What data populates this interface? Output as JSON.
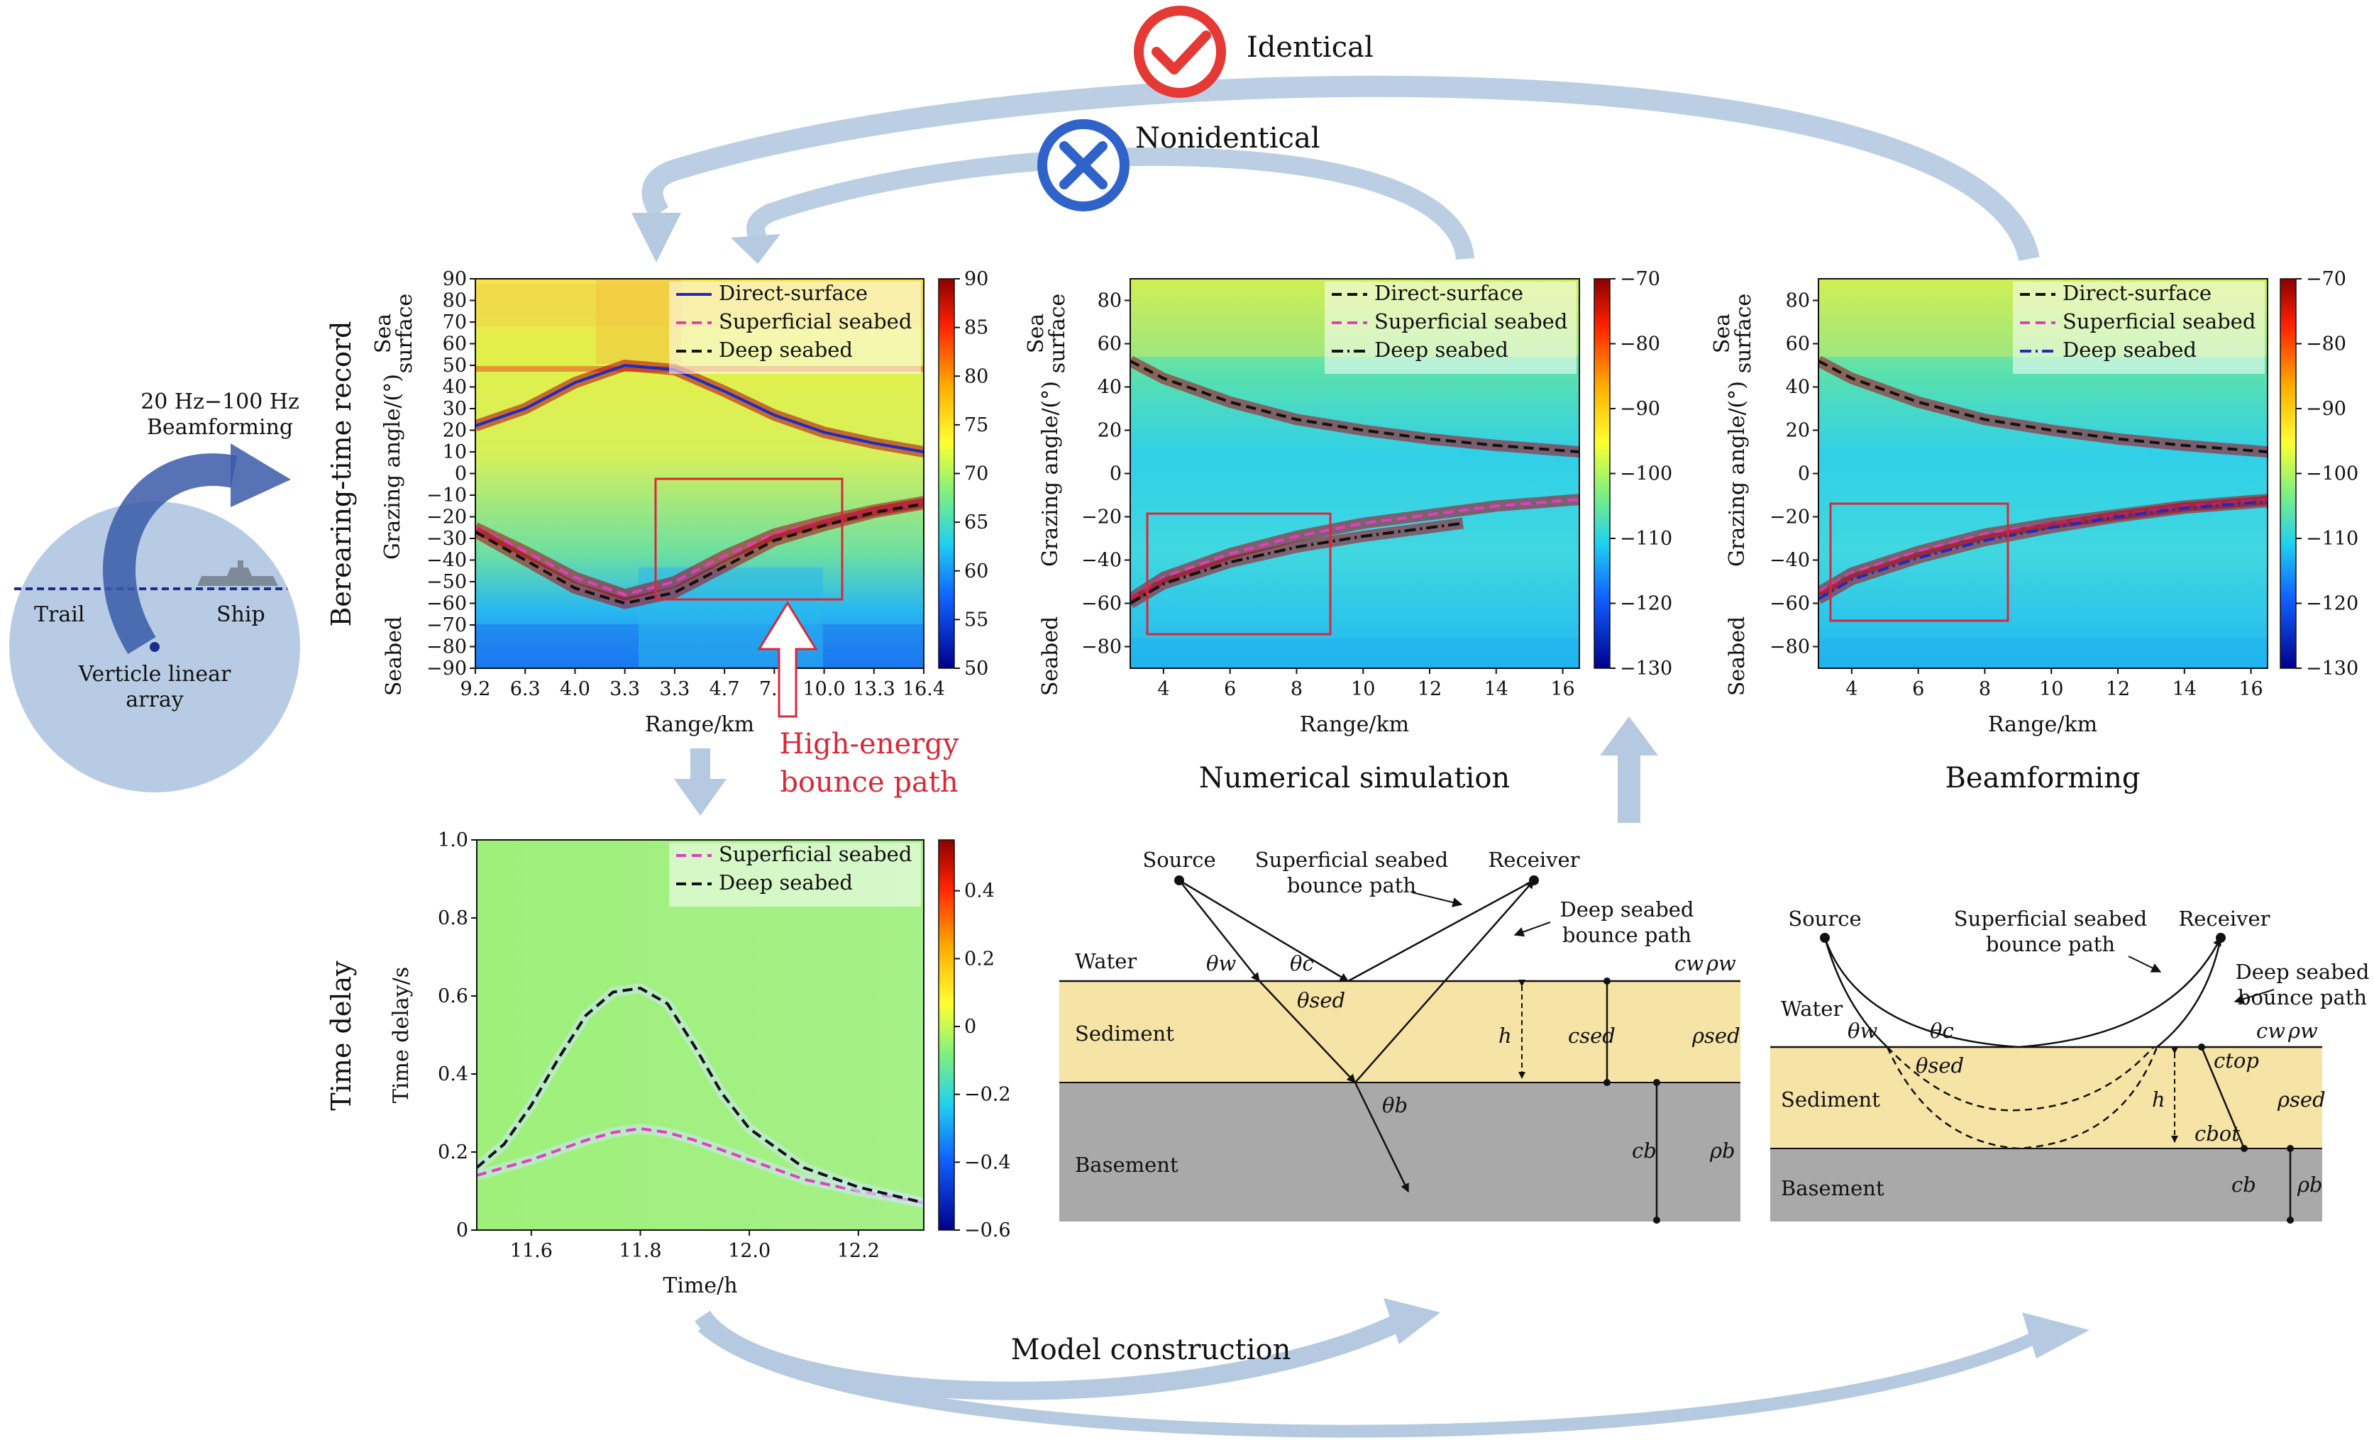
{
  "header": {
    "identical_label": "Identical",
    "nonidentical_label": "Nonidentical",
    "colors": {
      "identical": "#e53935",
      "nonidentical": "#2f63c9",
      "arrow": "#b9cde3"
    }
  },
  "array_scene": {
    "beamforming_label_line1": "20 Hz−100 Hz",
    "beamforming_label_line2": "Beamforming",
    "trail_label": "Trail",
    "ship_label": "Ship",
    "array_label_line1": "Verticle linear",
    "array_label_line2": "array"
  },
  "side_labels": {
    "bearing_time_record": "Berearing-time record",
    "time_delay": "Time delay"
  },
  "panel_captions": {
    "numerical_simulation": "Numerical simulation",
    "beamforming": "Beamforming",
    "high_energy_line1": "High-energy",
    "high_energy_line2": "bounce path",
    "model_construction": "Model construction"
  },
  "axis_side_labels": {
    "sea_surface_line1": "Sea",
    "sea_surface_line2": "surface",
    "seabed": "Seabed"
  },
  "chart_data": [
    {
      "type": "heatmap",
      "xlabel": "Range/km",
      "ylabel": "Grazing angle/(°)",
      "x_tick_labels": [
        "9.2",
        "6.3",
        "4.0",
        "3.3",
        "3.3",
        "4.7",
        "7.3",
        "10.0",
        "13.3",
        "16.4"
      ],
      "y_tick_labels": [
        "90",
        "80",
        "70",
        "60",
        "50",
        "40",
        "30",
        "20",
        "10",
        "0",
        "−10",
        "−20",
        "−30",
        "−40",
        "−50",
        "−60",
        "−70",
        "−80",
        "−90"
      ],
      "ylim": [
        -90,
        90
      ],
      "colorbar_ticks": [
        "90",
        "85",
        "80",
        "75",
        "70",
        "65",
        "60",
        "55",
        "50"
      ],
      "colorbar_range": [
        50,
        90
      ],
      "legend": [
        "Direct-surface",
        "Superficial seabed",
        "Deep seabed"
      ],
      "legend_location": "upper right",
      "series": [
        {
          "name": "Direct-surface",
          "style": "solid",
          "color": "#1f2bbf",
          "x": [
            0,
            1,
            2,
            3,
            4,
            5,
            6,
            7,
            8,
            9
          ],
          "y": [
            22,
            30,
            42,
            50,
            48,
            38,
            27,
            19,
            14,
            10
          ]
        },
        {
          "name": "Superficial seabed",
          "style": "dashed",
          "color": "#e040c0",
          "x": [
            0,
            1,
            2,
            3,
            4,
            5,
            6,
            7,
            8,
            9
          ],
          "y": [
            -25,
            -36,
            -48,
            -56,
            -50,
            -38,
            -28,
            -22,
            -17,
            -13
          ]
        },
        {
          "name": "Deep seabed",
          "style": "dashed",
          "color": "#111111",
          "x": [
            0,
            1,
            2,
            3,
            4,
            5,
            6,
            7,
            8,
            9
          ],
          "y": [
            -27,
            -40,
            -53,
            -60,
            -55,
            -43,
            -31,
            -24,
            -18,
            -14
          ]
        }
      ],
      "annotation": "High-energy bounce path"
    },
    {
      "type": "heatmap",
      "xlabel": "Range/km",
      "ylabel": "Grazing angle/(°)",
      "x_tick_labels": [
        "4",
        "6",
        "8",
        "10",
        "12",
        "14",
        "16"
      ],
      "xlim": [
        3,
        16.5
      ],
      "y_tick_labels": [
        "80",
        "60",
        "40",
        "20",
        "0",
        "−20",
        "−40",
        "−60",
        "−80"
      ],
      "ylim": [
        -90,
        90
      ],
      "colorbar_ticks": [
        "−70",
        "−80",
        "−90",
        "−100",
        "−110",
        "−120",
        "−130"
      ],
      "colorbar_range": [
        -130,
        -70
      ],
      "legend": [
        "Direct-surface",
        "Superficial seabed",
        "Deep seabed"
      ],
      "legend_location": "upper right",
      "caption": "Numerical simulation",
      "series": [
        {
          "name": "Direct-surface",
          "style": "dashed",
          "color": "#111111",
          "x": [
            3,
            4,
            6,
            8,
            10,
            12,
            14,
            16.5
          ],
          "y": [
            52,
            44,
            33,
            25,
            20,
            16,
            13,
            10
          ]
        },
        {
          "name": "Superficial seabed",
          "style": "dashed",
          "color": "#e040c0",
          "x": [
            3,
            4,
            6,
            8,
            10,
            12,
            14,
            16.5
          ],
          "y": [
            -58,
            -48,
            -37,
            -29,
            -23,
            -19,
            -15,
            -12
          ]
        },
        {
          "name": "Deep seabed",
          "style": "dashdot",
          "color": "#111111",
          "x": [
            3,
            4,
            6,
            8,
            10,
            12,
            13
          ],
          "y": [
            -60,
            -51,
            -41,
            -34,
            -29,
            -25,
            -23
          ]
        }
      ]
    },
    {
      "type": "heatmap",
      "xlabel": "Range/km",
      "ylabel": "Grazing angle/(°)",
      "x_tick_labels": [
        "4",
        "6",
        "8",
        "10",
        "12",
        "14",
        "16"
      ],
      "xlim": [
        3,
        16.5
      ],
      "y_tick_labels": [
        "80",
        "60",
        "40",
        "20",
        "0",
        "−20",
        "−40",
        "−60",
        "−80"
      ],
      "ylim": [
        -90,
        90
      ],
      "colorbar_ticks": [
        "−70",
        "−80",
        "−90",
        "−100",
        "−110",
        "−120",
        "−130"
      ],
      "colorbar_range": [
        -130,
        -70
      ],
      "legend": [
        "Direct-surface",
        "Superficial seabed",
        "Deep seabed"
      ],
      "legend_location": "upper right",
      "caption": "Beamforming",
      "series": [
        {
          "name": "Direct-surface",
          "style": "dashed",
          "color": "#111111",
          "x": [
            3,
            4,
            6,
            8,
            10,
            12,
            14,
            16.5
          ],
          "y": [
            52,
            44,
            33,
            25,
            20,
            16,
            13,
            10
          ]
        },
        {
          "name": "Superficial seabed",
          "style": "dashed",
          "color": "#e040c0",
          "x": [
            3,
            4,
            6,
            8,
            10,
            12,
            14,
            16.5
          ],
          "y": [
            -55,
            -46,
            -36,
            -28,
            -23,
            -19,
            -15,
            -12
          ]
        },
        {
          "name": "Deep seabed",
          "style": "dashdot",
          "color": "#1f2bbf",
          "x": [
            3,
            4,
            6,
            8,
            10,
            12,
            14,
            16.5
          ],
          "y": [
            -58,
            -49,
            -39,
            -31,
            -25,
            -20,
            -16,
            -13
          ]
        }
      ]
    },
    {
      "type": "heatmap",
      "xlabel": "Time/h",
      "ylabel": "Time delay/s",
      "x_tick_labels": [
        "11.6",
        "11.8",
        "12.0",
        "12.2"
      ],
      "xlim": [
        11.5,
        12.32
      ],
      "y_tick_labels": [
        "1.0",
        "0.8",
        "0.6",
        "0.4",
        "0.2",
        "0"
      ],
      "ylim": [
        0,
        1.0
      ],
      "colorbar_ticks": [
        "0.4",
        "0.2",
        "0",
        "−0.2",
        "−0.4",
        "−0.6"
      ],
      "colorbar_range": [
        -0.6,
        0.55
      ],
      "legend": [
        "Superficial seabed",
        "Deep seabed"
      ],
      "legend_location": "upper right",
      "series": [
        {
          "name": "Superficial seabed",
          "style": "dashed",
          "color": "#e040c0",
          "x": [
            11.5,
            11.6,
            11.7,
            11.75,
            11.8,
            11.85,
            11.9,
            12.0,
            12.1,
            12.2,
            12.32
          ],
          "y": [
            0.14,
            0.18,
            0.23,
            0.25,
            0.26,
            0.25,
            0.23,
            0.18,
            0.13,
            0.1,
            0.07
          ]
        },
        {
          "name": "Deep seabed",
          "style": "dashed",
          "color": "#111111",
          "x": [
            11.5,
            11.55,
            11.6,
            11.65,
            11.7,
            11.75,
            11.8,
            11.85,
            11.9,
            11.95,
            12.0,
            12.1,
            12.2,
            12.32
          ],
          "y": [
            0.16,
            0.22,
            0.32,
            0.44,
            0.55,
            0.61,
            0.62,
            0.58,
            0.47,
            0.35,
            0.26,
            0.16,
            0.11,
            0.07
          ]
        }
      ]
    }
  ],
  "model_left": {
    "source": "Source",
    "receiver": "Receiver",
    "superficial_path_line1": "Superficial seabed",
    "superficial_path_line2": "bounce path",
    "deep_path_line1": "Deep seabed",
    "deep_path_line2": "bounce path",
    "water": "Water",
    "sediment": "Sediment",
    "basement": "Basement",
    "theta_w": "θw",
    "theta_c": "θc",
    "theta_sed": "θsed",
    "theta_b": "θb",
    "h": "h",
    "c_sed": "csed",
    "c_b": "cb",
    "c_w": "cw",
    "rho_w": "ρw",
    "rho_sed": "ρsed",
    "rho_b": "ρb",
    "colors": {
      "sediment": "#f6e3a6",
      "basement": "#a9a9a9"
    }
  },
  "model_right": {
    "source": "Source",
    "receiver": "Receiver",
    "superficial_path_line1": "Superficial seabed",
    "superficial_path_line2": "bounce path",
    "deep_path_line1": "Deep seabed",
    "deep_path_line2": "bounce path",
    "water": "Water",
    "sediment": "Sediment",
    "basement": "Basement",
    "theta_w": "θw",
    "theta_c": "θc",
    "theta_sed": "θsed",
    "h": "h",
    "c_top": "ctop",
    "c_bot": "cbot",
    "c_b": "cb",
    "c_w": "cw",
    "rho_w": "ρw",
    "rho_sed": "ρsed",
    "rho_b": "ρb"
  }
}
